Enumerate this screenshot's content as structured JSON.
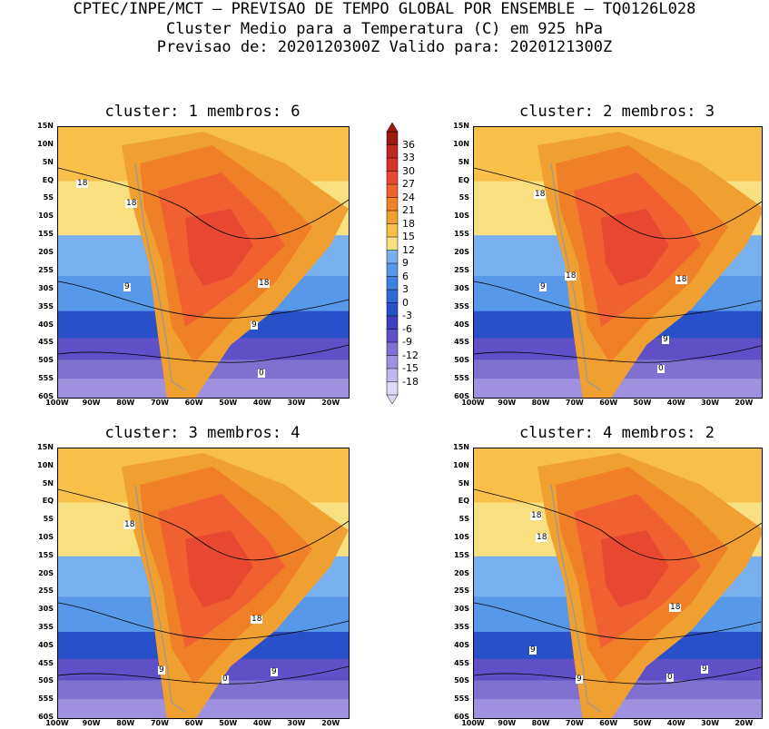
{
  "header": {
    "line1": "CPTEC/INPE/MCT — PREVISAO DE TEMPO GLOBAL POR ENSEMBLE — TQ0126L028",
    "line2": "Cluster Medio para a Temperatura (C) em 925 hPa",
    "line3": "Previsao de: 2020120300Z   Valido para: 2020121300Z"
  },
  "axes": {
    "lat_labels": [
      "15N",
      "10N",
      "5N",
      "EQ",
      "5S",
      "10S",
      "15S",
      "20S",
      "25S",
      "30S",
      "35S",
      "40S",
      "45S",
      "50S",
      "55S",
      "60S"
    ],
    "lon_labels": [
      "100W",
      "90W",
      "80W",
      "70W",
      "60W",
      "50W",
      "40W",
      "30W",
      "20W"
    ]
  },
  "panels": [
    {
      "title": "cluster: 1   membros: 6",
      "contour_labels": [
        "18",
        "18",
        "18",
        "9",
        "9",
        "0"
      ]
    },
    {
      "title": "cluster: 2   membros: 3",
      "contour_labels": [
        "18",
        "18",
        "18",
        "9",
        "9",
        "0"
      ]
    },
    {
      "title": "cluster: 3   membros: 4",
      "contour_labels": [
        "18",
        "18",
        "9",
        "9",
        "0"
      ]
    },
    {
      "title": "cluster: 4   membros: 2",
      "contour_labels": [
        "18",
        "18",
        "18",
        "9",
        "9",
        "9",
        "0"
      ]
    }
  ],
  "colorbar": {
    "labels": [
      "36",
      "33",
      "30",
      "27",
      "24",
      "21",
      "18",
      "15",
      "12",
      "9",
      "6",
      "3",
      "0",
      "-3",
      "-6",
      "-9",
      "-12",
      "-15",
      "-18"
    ],
    "colors": [
      "#a01810",
      "#c02820",
      "#d83028",
      "#e84830",
      "#f06030",
      "#f08028",
      "#f0a030",
      "#f8c048",
      "#f8e080",
      "#78b0f0",
      "#5898e8",
      "#4080e0",
      "#3068d8",
      "#2850c8",
      "#4040c0",
      "#6050c8",
      "#8070d0",
      "#a090e0",
      "#c0b8f0",
      "#ded8f8"
    ]
  }
}
